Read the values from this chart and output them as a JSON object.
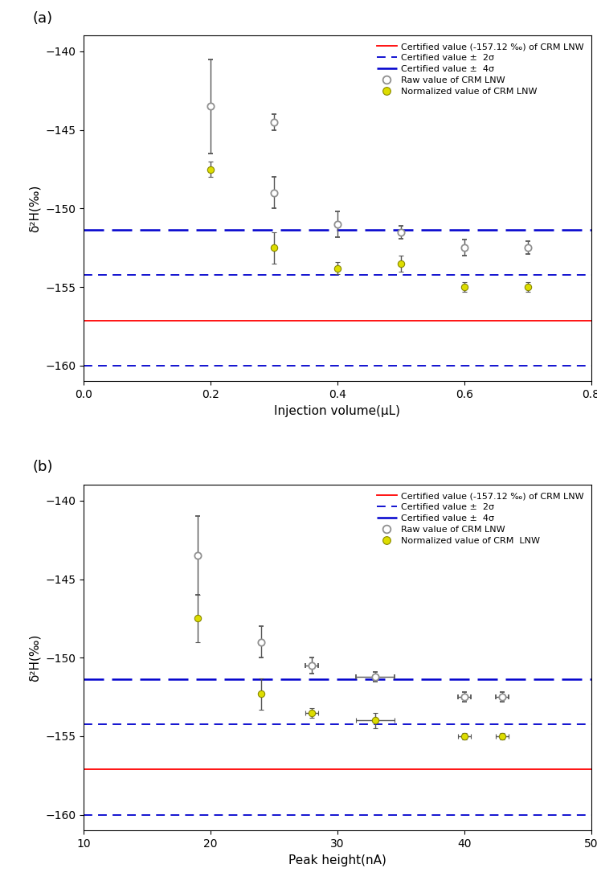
{
  "certified_value": -157.12,
  "sigma_2": 2.88,
  "sigma_4": 5.76,
  "panel_a": {
    "label": "(a)",
    "xlabel": "Injection volume(μL)",
    "xlim": [
      0.0,
      0.8
    ],
    "xticks": [
      0.0,
      0.2,
      0.4,
      0.6,
      0.8
    ],
    "raw_x": [
      0.2,
      0.3,
      0.3,
      0.4,
      0.5,
      0.6,
      0.7
    ],
    "raw_y": [
      -143.5,
      -144.5,
      -149.0,
      -151.0,
      -151.5,
      -152.5,
      -152.5
    ],
    "raw_yerr": [
      3.0,
      0.5,
      1.0,
      0.8,
      0.4,
      0.5,
      0.4
    ],
    "norm_x": [
      0.2,
      0.3,
      0.4,
      0.5,
      0.6,
      0.7
    ],
    "norm_y": [
      -147.5,
      -152.5,
      -153.8,
      -153.5,
      -155.0,
      -155.0
    ],
    "norm_yerr": [
      0.5,
      1.0,
      0.4,
      0.5,
      0.3,
      0.3
    ],
    "ylim": [
      -161,
      -139
    ],
    "yticks": [
      -160,
      -155,
      -150,
      -145,
      -140
    ]
  },
  "panel_b": {
    "label": "(b)",
    "xlabel": "Peak height(nA)",
    "xlim": [
      10,
      50
    ],
    "xticks": [
      10,
      20,
      30,
      40,
      50
    ],
    "raw_x": [
      19,
      24,
      28,
      33,
      40,
      43
    ],
    "raw_y": [
      -143.5,
      -149.0,
      -150.5,
      -151.2,
      -152.5,
      -152.5
    ],
    "raw_yerr": [
      2.5,
      1.0,
      0.5,
      0.3,
      0.3,
      0.3
    ],
    "raw_xerr": [
      0.0,
      0.0,
      0.5,
      1.5,
      0.5,
      0.5
    ],
    "norm_x": [
      19,
      24,
      28,
      33,
      40,
      43
    ],
    "norm_y": [
      -147.5,
      -152.3,
      -153.5,
      -154.0,
      -155.0,
      -155.0
    ],
    "norm_yerr": [
      1.5,
      1.0,
      0.3,
      0.5,
      0.2,
      0.2
    ],
    "norm_xerr": [
      0.0,
      0.0,
      0.5,
      1.5,
      0.5,
      0.5
    ],
    "ylim": [
      -161,
      -139
    ],
    "yticks": [
      -160,
      -155,
      -150,
      -145,
      -140
    ]
  },
  "colors": {
    "red_line": "#FF0000",
    "blue_dashed": "#0000CD",
    "gray_marker": "#909090",
    "yellow_marker": "#DDDD00"
  },
  "legend_labels": {
    "red": "Certified value (-157.12 ‰) of CRM LNW",
    "blue2": "Certified value ±  2σ",
    "blue4": "Certified value ±  4σ",
    "gray": "Raw value of CRM LNW",
    "yellow_a": "Normalized value of CRM LNW",
    "yellow_b": "Normalized value of CRM  LNW"
  },
  "ylabel": "δ²H(‰)"
}
